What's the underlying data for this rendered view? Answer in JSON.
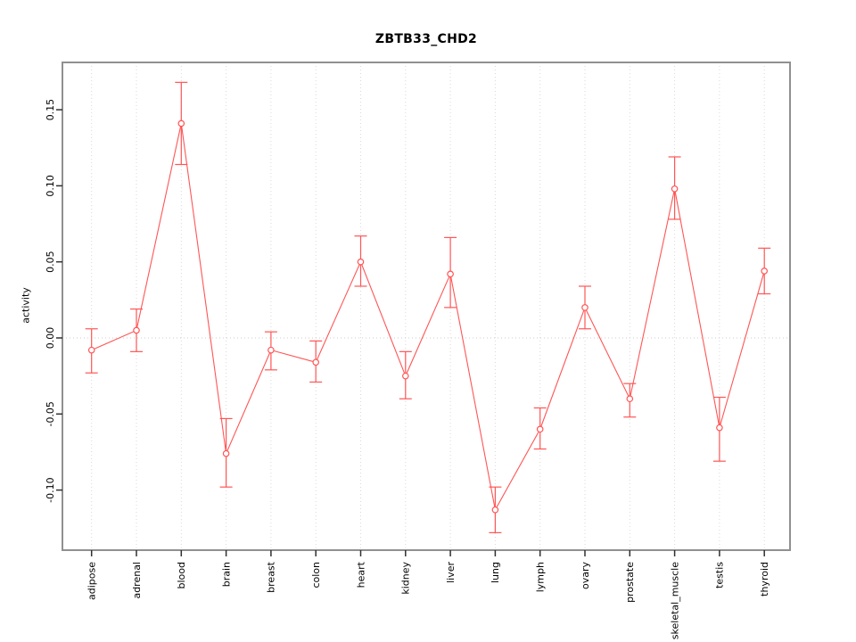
{
  "page": {
    "background_color": "#ffffff"
  },
  "chart_data": {
    "type": "line",
    "title": "ZBTB33_CHD2",
    "xlabel": "",
    "ylabel": "activity",
    "legend_position": "none",
    "grid": "vertical dotted gridline per category, dotted horizontal line at y=0",
    "marker": "open-circle",
    "error_bars": true,
    "line_color": "#ff5555",
    "grid_color": "#d9d9d9",
    "zero_line_color": "#cccccc",
    "frame_color": "#909090",
    "tick_color": "#303030",
    "ylim": [
      -0.1395,
      0.1811
    ],
    "ytick_values": [
      -0.1,
      -0.05,
      0.0,
      0.05,
      0.1,
      0.15
    ],
    "ytick_labels": [
      "-0.10",
      "-0.05",
      "0.00",
      "0.05",
      "0.10",
      "0.15"
    ],
    "categories": [
      "adipose",
      "adrenal",
      "blood",
      "brain",
      "breast",
      "colon",
      "heart",
      "kidney",
      "liver",
      "lung",
      "lymph",
      "ovary",
      "prostate",
      "skeletal_muscle",
      "testis",
      "thyroid"
    ],
    "series": [
      {
        "name": "activity",
        "values": [
          -0.008,
          0.005,
          0.141,
          -0.076,
          -0.008,
          -0.016,
          0.05,
          -0.025,
          0.042,
          -0.113,
          -0.06,
          0.02,
          -0.04,
          0.098,
          -0.059,
          0.044
        ],
        "ci_low": [
          -0.023,
          -0.009,
          0.114,
          -0.098,
          -0.021,
          -0.029,
          0.034,
          -0.04,
          0.02,
          -0.128,
          -0.073,
          0.006,
          -0.052,
          0.078,
          -0.081,
          0.029
        ],
        "ci_high": [
          0.006,
          0.019,
          0.168,
          -0.053,
          0.004,
          -0.002,
          0.067,
          -0.009,
          0.066,
          -0.098,
          -0.046,
          0.034,
          -0.03,
          0.119,
          -0.039,
          0.059
        ]
      }
    ]
  }
}
